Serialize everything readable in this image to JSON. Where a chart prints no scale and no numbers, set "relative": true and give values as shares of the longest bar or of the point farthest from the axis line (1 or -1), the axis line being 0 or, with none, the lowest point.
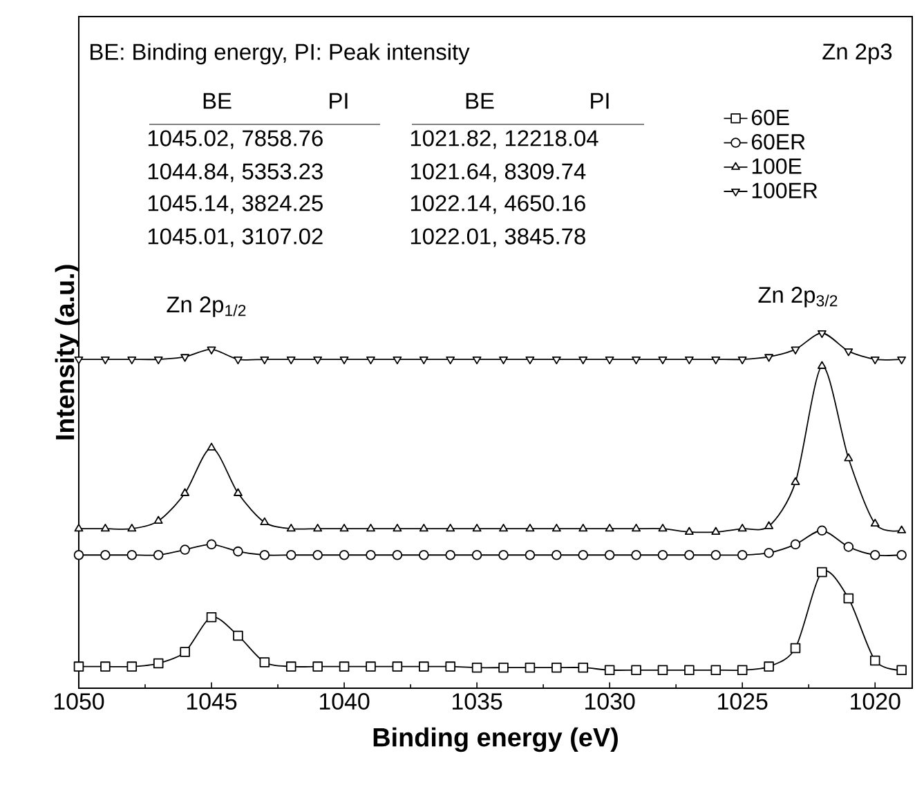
{
  "chart_data": {
    "type": "line",
    "relative": true,
    "xlabel": "Binding energy (eV)",
    "ylabel": "Intensity (a.u.)",
    "xlim": [
      1050,
      1018.6
    ],
    "xticks": [
      1050,
      1045,
      1040,
      1035,
      1030,
      1025,
      1020
    ],
    "x": [
      1050,
      1049,
      1048,
      1047,
      1046,
      1045,
      1044,
      1043,
      1042,
      1041,
      1040,
      1039,
      1038,
      1037,
      1036,
      1035,
      1034,
      1033,
      1032,
      1031,
      1030,
      1029,
      1028,
      1027,
      1026,
      1025,
      1024,
      1023,
      1022,
      1021,
      1020,
      1019
    ],
    "legend": "top right",
    "line_style": "solid",
    "series": [
      {
        "name": "60E",
        "color": "#000000",
        "marker": "square",
        "values": [
          0.061,
          0.061,
          0.061,
          0.07,
          0.102,
          0.2,
          0.148,
          0.073,
          0.061,
          0.061,
          0.061,
          0.061,
          0.061,
          0.061,
          0.061,
          0.058,
          0.058,
          0.058,
          0.058,
          0.058,
          0.051,
          0.051,
          0.051,
          0.051,
          0.051,
          0.051,
          0.061,
          0.113,
          0.327,
          0.253,
          0.078,
          0.051
        ]
      },
      {
        "name": "60ER",
        "color": "#000000",
        "marker": "circle",
        "values": [
          0.375,
          0.375,
          0.375,
          0.375,
          0.39,
          0.405,
          0.385,
          0.375,
          0.375,
          0.375,
          0.375,
          0.375,
          0.375,
          0.375,
          0.375,
          0.375,
          0.375,
          0.375,
          0.375,
          0.375,
          0.375,
          0.375,
          0.375,
          0.375,
          0.375,
          0.375,
          0.381,
          0.405,
          0.444,
          0.398,
          0.375,
          0.375
        ]
      },
      {
        "name": "100E",
        "color": "#000000",
        "marker": "triangle",
        "values": [
          0.449,
          0.449,
          0.449,
          0.471,
          0.549,
          0.677,
          0.549,
          0.467,
          0.449,
          0.449,
          0.449,
          0.449,
          0.449,
          0.449,
          0.449,
          0.449,
          0.449,
          0.449,
          0.449,
          0.449,
          0.449,
          0.449,
          0.449,
          0.44,
          0.44,
          0.449,
          0.456,
          0.58,
          0.907,
          0.647,
          0.463,
          0.444
        ]
      },
      {
        "name": "100ER",
        "color": "#000000",
        "marker": "triangle-down",
        "values": [
          0.926,
          0.926,
          0.926,
          0.926,
          0.933,
          0.954,
          0.926,
          0.926,
          0.926,
          0.926,
          0.926,
          0.926,
          0.926,
          0.926,
          0.926,
          0.926,
          0.926,
          0.926,
          0.926,
          0.926,
          0.926,
          0.926,
          0.926,
          0.926,
          0.926,
          0.926,
          0.933,
          0.954,
          1,
          0.949,
          0.926,
          0.926
        ]
      }
    ],
    "annotations": [
      "BE: Binding energy, PI: Peak intensity",
      "Zn 2p3",
      "BE",
      "PI",
      "BE",
      "PI",
      "1045.02, 7858.76",
      "1044.84, 5353.23",
      "1045.14, 3824.25",
      "1045.01, 3107.02",
      "1021.82, 12218.04",
      "1021.64, 8309.74",
      "1022.14, 4650.16",
      "1022.01, 3845.78",
      "Zn 2p$_{1/2}$",
      "Zn 2p$_{3/2}$"
    ]
  }
}
